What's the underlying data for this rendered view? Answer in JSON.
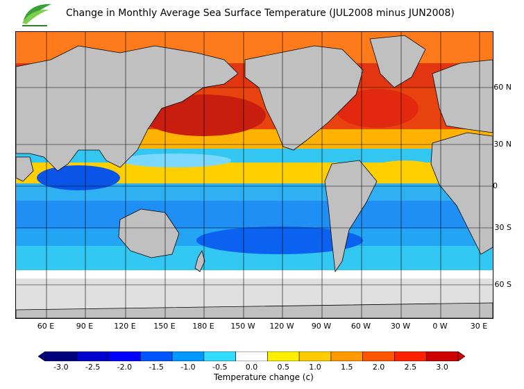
{
  "header": {
    "title": "Change in Monthly Average Sea Surface Temperature (JUL2008 minus JUN2008)"
  },
  "map": {
    "lat_labels": [
      "60 N",
      "30 N",
      "0",
      "30 S",
      "60 S"
    ],
    "lon_labels": [
      "60 E",
      "90 E",
      "120 E",
      "150 E",
      "180 E",
      "150 W",
      "120 W",
      "90 W",
      "60 W",
      "30 W",
      "0 W",
      "30 E"
    ],
    "colors": {
      "land": "#c0c0c0",
      "ice_no_data": "#e0e0e0",
      "coastline": "#000000",
      "grid": "#000000"
    }
  },
  "colorbar": {
    "title": "Temperature change  (c)",
    "tick_labels": [
      "-3.0",
      "-2.5",
      "-2.0",
      "-1.5",
      "-1.0",
      "-0.5",
      "0.0",
      "0.5",
      "1.0",
      "1.5",
      "2.0",
      "2.5",
      "3.0"
    ],
    "colors": [
      "#00007f",
      "#0000cc",
      "#0000ff",
      "#0055ff",
      "#0099ff",
      "#33ddff",
      "#ffffff",
      "#ffee00",
      "#ffcc00",
      "#ff9900",
      "#ff5500",
      "#ff2200",
      "#cc0000"
    ]
  }
}
